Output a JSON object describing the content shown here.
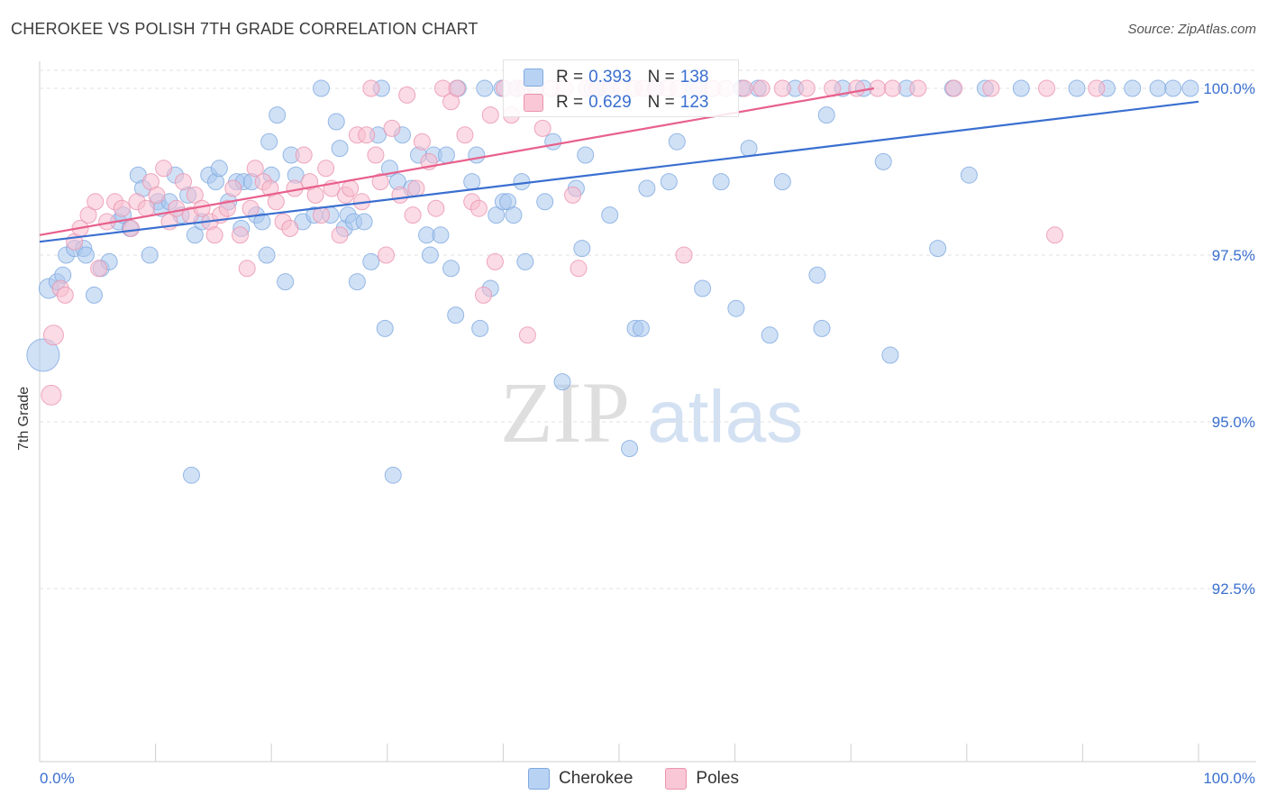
{
  "title": "CHEROKEE VS POLISH 7TH GRADE CORRELATION CHART",
  "source": "Source: ZipAtlas.com",
  "watermark": {
    "zip": "ZIP",
    "atlas": "atlas"
  },
  "colors": {
    "blue": "#3a6fd0",
    "pink": "#e8608c",
    "blue_fill": "#a9c8ef",
    "pink_fill": "#f7bdd0",
    "tick_text": "#3a6fd0"
  },
  "stats": [
    {
      "r_label": "R =",
      "r_value": "0.393",
      "n_label": "N =",
      "n_value": "138"
    },
    {
      "r_label": "R =",
      "r_value": "0.629",
      "n_label": "N =",
      "n_value": "123"
    }
  ],
  "legend": [
    {
      "label": "Cherokee"
    },
    {
      "label": "Poles"
    }
  ],
  "chart_data": {
    "type": "scatter",
    "title": "CHEROKEE VS POLISH 7TH GRADE CORRELATION CHART",
    "xlabel": "",
    "ylabel": "7th Grade",
    "xlim": [
      0,
      100
    ],
    "ylim": [
      90.3,
      100.2
    ],
    "x_tick_labels": [
      "0.0%",
      "100.0%"
    ],
    "y_ticks": [
      92.5,
      95.0,
      97.5,
      100.0
    ],
    "y_tick_labels": [
      "92.5%",
      "95.0%",
      "97.5%",
      "100.0%"
    ],
    "grid": true,
    "legend_position": "bottom",
    "series": [
      {
        "name": "Cherokee",
        "color": "#3a6fd0",
        "trend": {
          "x": [
            0,
            100
          ],
          "y": [
            97.7,
            99.8
          ]
        },
        "points": [
          [
            0.3,
            96.0
          ],
          [
            0.8,
            97.0
          ],
          [
            1.5,
            97.1
          ],
          [
            2,
            97.2
          ],
          [
            2.3,
            97.5
          ],
          [
            3,
            97.6
          ],
          [
            3.8,
            97.6
          ],
          [
            4,
            97.5
          ],
          [
            4.7,
            96.9
          ],
          [
            5.3,
            97.3
          ],
          [
            6,
            97.4
          ],
          [
            6.8,
            98.0
          ],
          [
            7.2,
            98.1
          ],
          [
            7.8,
            97.9
          ],
          [
            8.5,
            98.7
          ],
          [
            8.9,
            98.5
          ],
          [
            9.5,
            97.5
          ],
          [
            10.2,
            98.3
          ],
          [
            10.5,
            98.2
          ],
          [
            11.2,
            98.3
          ],
          [
            11.7,
            98.7
          ],
          [
            12.2,
            98.1
          ],
          [
            12.8,
            98.4
          ],
          [
            13.1,
            94.2
          ],
          [
            13.4,
            97.8
          ],
          [
            14,
            98.0
          ],
          [
            14.6,
            98.7
          ],
          [
            15.2,
            98.6
          ],
          [
            15.5,
            98.8
          ],
          [
            16.3,
            98.3
          ],
          [
            17,
            98.6
          ],
          [
            17.4,
            97.9
          ],
          [
            17.6,
            98.6
          ],
          [
            18.3,
            98.6
          ],
          [
            18.7,
            98.1
          ],
          [
            19.2,
            98.0
          ],
          [
            19.6,
            97.5
          ],
          [
            19.8,
            99.2
          ],
          [
            20,
            98.7
          ],
          [
            20.5,
            99.6
          ],
          [
            21.2,
            97.1
          ],
          [
            21.7,
            99.0
          ],
          [
            22.1,
            98.7
          ],
          [
            22.7,
            98.0
          ],
          [
            23.7,
            98.1
          ],
          [
            24.3,
            100.0
          ],
          [
            25.1,
            98.1
          ],
          [
            25.6,
            99.5
          ],
          [
            25.9,
            99.1
          ],
          [
            26.3,
            97.9
          ],
          [
            26.6,
            98.1
          ],
          [
            27.1,
            98.0
          ],
          [
            28,
            98.0
          ],
          [
            27.4,
            97.1
          ],
          [
            28.6,
            97.4
          ],
          [
            29.2,
            99.3
          ],
          [
            29.5,
            100.0
          ],
          [
            29.8,
            96.4
          ],
          [
            30.2,
            98.8
          ],
          [
            30.5,
            94.2
          ],
          [
            30.9,
            98.6
          ],
          [
            31.3,
            99.3
          ],
          [
            32.1,
            98.5
          ],
          [
            32.7,
            99.0
          ],
          [
            33.4,
            97.8
          ],
          [
            33.7,
            97.5
          ],
          [
            34,
            99.0
          ],
          [
            34.6,
            97.8
          ],
          [
            35.1,
            99.0
          ],
          [
            35.5,
            97.3
          ],
          [
            35.9,
            96.6
          ],
          [
            36.1,
            100.0
          ],
          [
            37.3,
            98.6
          ],
          [
            37.7,
            99.0
          ],
          [
            38,
            96.4
          ],
          [
            38.4,
            100.0
          ],
          [
            38.9,
            97.0
          ],
          [
            39.4,
            98.1
          ],
          [
            39.9,
            100.0
          ],
          [
            40,
            98.3
          ],
          [
            40.4,
            98.3
          ],
          [
            40.9,
            98.1
          ],
          [
            41.2,
            100.0
          ],
          [
            41.6,
            98.6
          ],
          [
            41.9,
            97.4
          ],
          [
            42.8,
            100.0
          ],
          [
            43.6,
            98.3
          ],
          [
            44.3,
            99.2
          ],
          [
            45.1,
            95.6
          ],
          [
            46.3,
            98.5
          ],
          [
            46.8,
            97.6
          ],
          [
            47.1,
            99.0
          ],
          [
            47.7,
            100.0
          ],
          [
            48.2,
            100.0
          ],
          [
            48.8,
            100.0
          ],
          [
            49.2,
            98.1
          ],
          [
            50.9,
            94.6
          ],
          [
            51.4,
            96.4
          ],
          [
            51.9,
            96.4
          ],
          [
            52.4,
            98.5
          ],
          [
            53.1,
            100.0
          ],
          [
            54.3,
            98.6
          ],
          [
            55,
            99.2
          ],
          [
            56.5,
            100.0
          ],
          [
            57.2,
            97.0
          ],
          [
            58.8,
            98.6
          ],
          [
            60.1,
            96.7
          ],
          [
            60.6,
            100.0
          ],
          [
            61.2,
            99.1
          ],
          [
            62,
            100.0
          ],
          [
            63,
            96.3
          ],
          [
            64.1,
            98.6
          ],
          [
            65.2,
            100.0
          ],
          [
            67.1,
            97.2
          ],
          [
            67.9,
            99.6
          ],
          [
            67.5,
            96.4
          ],
          [
            69.3,
            100.0
          ],
          [
            71.1,
            100.0
          ],
          [
            72.8,
            98.9
          ],
          [
            73.4,
            96.0
          ],
          [
            74.8,
            100.0
          ],
          [
            77.5,
            97.6
          ],
          [
            78.8,
            100.0
          ],
          [
            80.2,
            98.7
          ],
          [
            81.6,
            100.0
          ],
          [
            84.7,
            100.0
          ],
          [
            89.5,
            100.0
          ],
          [
            92.1,
            100.0
          ],
          [
            94.3,
            100.0
          ],
          [
            96.5,
            100.0
          ],
          [
            97.8,
            100.0
          ],
          [
            99.3,
            100.0
          ]
        ]
      },
      {
        "name": "Poles",
        "color": "#e8608c",
        "trend": {
          "x": [
            0,
            72
          ],
          "y": [
            97.8,
            100.0
          ]
        },
        "points": [
          [
            1.2,
            96.3
          ],
          [
            1,
            95.4
          ],
          [
            1.8,
            97.0
          ],
          [
            2.2,
            96.9
          ],
          [
            3,
            97.7
          ],
          [
            3.5,
            97.9
          ],
          [
            4.2,
            98.1
          ],
          [
            4.8,
            98.3
          ],
          [
            5.1,
            97.3
          ],
          [
            5.8,
            98.0
          ],
          [
            6.5,
            98.3
          ],
          [
            7.1,
            98.2
          ],
          [
            7.9,
            97.9
          ],
          [
            8.4,
            98.3
          ],
          [
            9.2,
            98.2
          ],
          [
            9.6,
            98.6
          ],
          [
            10.1,
            98.4
          ],
          [
            10.7,
            98.8
          ],
          [
            11.2,
            98.0
          ],
          [
            11.8,
            98.2
          ],
          [
            12.4,
            98.6
          ],
          [
            13,
            98.1
          ],
          [
            13.4,
            98.4
          ],
          [
            14,
            98.2
          ],
          [
            14.7,
            98.0
          ],
          [
            15.1,
            97.8
          ],
          [
            15.6,
            98.1
          ],
          [
            16.2,
            98.2
          ],
          [
            16.7,
            98.5
          ],
          [
            17.3,
            97.8
          ],
          [
            17.9,
            97.3
          ],
          [
            18.2,
            98.2
          ],
          [
            18.6,
            98.8
          ],
          [
            19.3,
            98.6
          ],
          [
            19.9,
            98.5
          ],
          [
            20.4,
            98.3
          ],
          [
            21,
            98.0
          ],
          [
            21.6,
            97.9
          ],
          [
            22,
            98.5
          ],
          [
            22.8,
            99.0
          ],
          [
            23.3,
            98.6
          ],
          [
            23.8,
            98.4
          ],
          [
            24.3,
            98.1
          ],
          [
            24.7,
            98.8
          ],
          [
            25.2,
            98.5
          ],
          [
            25.9,
            97.8
          ],
          [
            26.4,
            98.4
          ],
          [
            26.8,
            98.5
          ],
          [
            27.4,
            99.3
          ],
          [
            27.8,
            98.3
          ],
          [
            28.2,
            99.3
          ],
          [
            28.6,
            100.0
          ],
          [
            29,
            99.0
          ],
          [
            29.4,
            98.6
          ],
          [
            29.9,
            97.5
          ],
          [
            30.4,
            99.4
          ],
          [
            31.1,
            98.4
          ],
          [
            31.7,
            99.9
          ],
          [
            32.2,
            98.1
          ],
          [
            32.5,
            98.5
          ],
          [
            33,
            99.2
          ],
          [
            33.6,
            98.9
          ],
          [
            34.2,
            98.2
          ],
          [
            34.8,
            100.0
          ],
          [
            35.5,
            99.8
          ],
          [
            36,
            100.0
          ],
          [
            36.7,
            99.3
          ],
          [
            37.3,
            98.3
          ],
          [
            37.9,
            98.2
          ],
          [
            38.3,
            96.9
          ],
          [
            38.9,
            99.6
          ],
          [
            39.3,
            97.4
          ],
          [
            40.1,
            100.0
          ],
          [
            40.7,
            99.6
          ],
          [
            41.2,
            100.0
          ],
          [
            41.8,
            100.0
          ],
          [
            42.1,
            96.3
          ],
          [
            42.8,
            100.0
          ],
          [
            43.4,
            99.4
          ],
          [
            44.1,
            100.0
          ],
          [
            45.3,
            100.0
          ],
          [
            46,
            98.4
          ],
          [
            46.5,
            97.3
          ],
          [
            47.2,
            100.0
          ],
          [
            48.1,
            100.0
          ],
          [
            49.3,
            100.0
          ],
          [
            50.2,
            100.0
          ],
          [
            51.3,
            100.0
          ],
          [
            52.1,
            100.0
          ],
          [
            53.2,
            100.0
          ],
          [
            54.2,
            100.0
          ],
          [
            55.1,
            100.0
          ],
          [
            55.6,
            97.5
          ],
          [
            56.9,
            100.0
          ],
          [
            58.1,
            100.0
          ],
          [
            59.2,
            100.0
          ],
          [
            60.8,
            100.0
          ],
          [
            62.3,
            100.0
          ],
          [
            64.1,
            100.0
          ],
          [
            66.2,
            100.0
          ],
          [
            68.4,
            100.0
          ],
          [
            70.5,
            100.0
          ],
          [
            72.3,
            100.0
          ],
          [
            73.6,
            100.0
          ],
          [
            75.8,
            100.0
          ],
          [
            78.9,
            100.0
          ],
          [
            82.1,
            100.0
          ],
          [
            87.6,
            97.8
          ],
          [
            86.9,
            100.0
          ],
          [
            91.2,
            100.0
          ]
        ]
      }
    ]
  }
}
